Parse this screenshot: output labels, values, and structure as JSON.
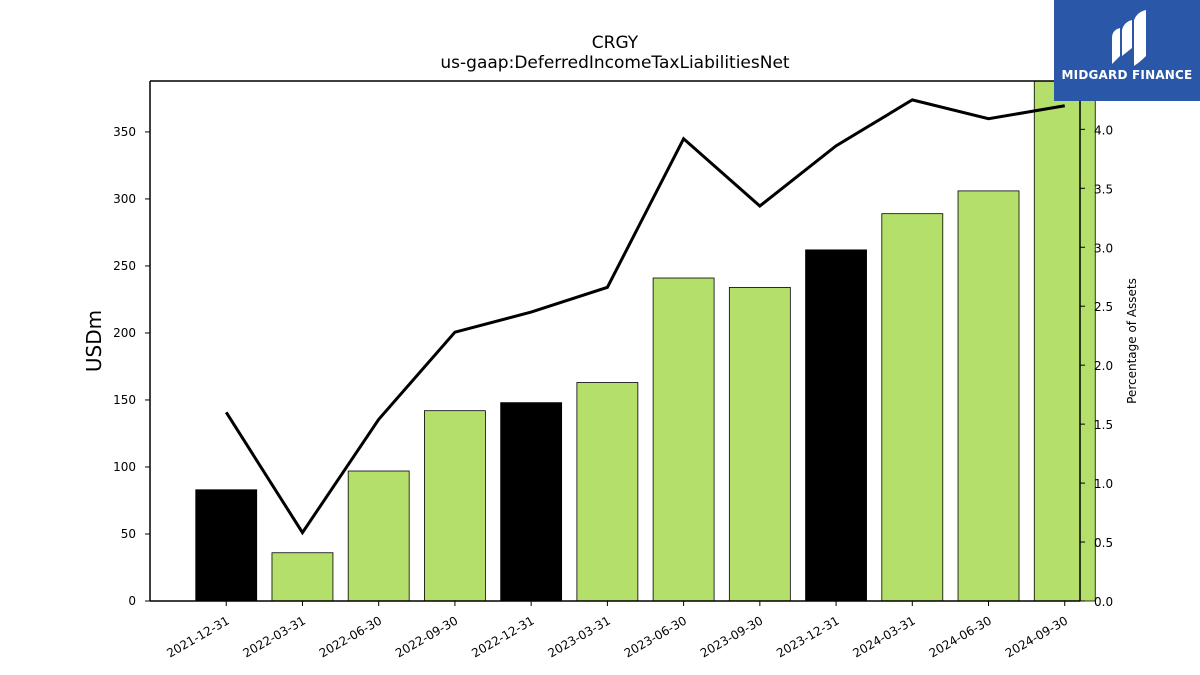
{
  "chart_data": {
    "type": "bar",
    "title": "CRGY",
    "subtitle": "us-gaap:DeferredIncomeTaxLiabilitiesNet",
    "ylabel": "USDm",
    "y2label": "Percentage of Assets",
    "categories": [
      "2021-12-31",
      "2022-03-31",
      "2022-06-30",
      "2022-09-30",
      "2022-12-31",
      "2023-03-31",
      "2023-06-30",
      "2023-09-30",
      "2023-12-31",
      "2024-03-31",
      "2024-06-30",
      "2024-09-30"
    ],
    "values": [
      83,
      36,
      97,
      142,
      148,
      163,
      241,
      234,
      262,
      289,
      306,
      389
    ],
    "bar_colors": [
      "#000000",
      "#b5df6b",
      "#b5df6b",
      "#b5df6b",
      "#000000",
      "#b5df6b",
      "#b5df6b",
      "#b5df6b",
      "#000000",
      "#b5df6b",
      "#b5df6b",
      "#b5df6b"
    ],
    "line_values": [
      1.6,
      0.58,
      1.54,
      2.28,
      2.45,
      2.66,
      3.92,
      3.35,
      3.86,
      4.25,
      4.09,
      4.2
    ],
    "line_color": "#000000",
    "ylim": [
      0,
      388
    ],
    "y2lim": [
      0,
      4.41
    ],
    "yticks": [
      0,
      50,
      100,
      150,
      200,
      250,
      300,
      350
    ],
    "y2ticks": [
      0.0,
      0.5,
      1.0,
      1.5,
      2.0,
      2.5,
      3.0,
      3.5,
      4.0
    ],
    "grid": false
  },
  "logo": {
    "text": "MIDGARD FINANCE",
    "background": "#2a57a8"
  }
}
